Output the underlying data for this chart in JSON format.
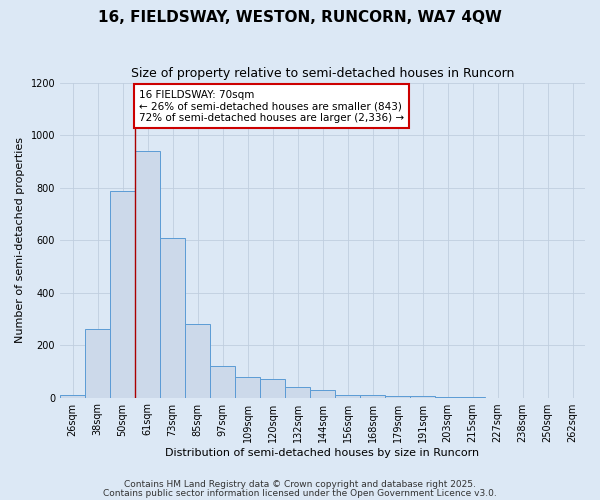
{
  "title1": "16, FIELDSWAY, WESTON, RUNCORN, WA7 4QW",
  "title2": "Size of property relative to semi-detached houses in Runcorn",
  "xlabel": "Distribution of semi-detached houses by size in Runcorn",
  "ylabel": "Number of semi-detached properties",
  "bin_labels": [
    "26sqm",
    "38sqm",
    "50sqm",
    "61sqm",
    "73sqm",
    "85sqm",
    "97sqm",
    "109sqm",
    "120sqm",
    "132sqm",
    "144sqm",
    "156sqm",
    "168sqm",
    "179sqm",
    "191sqm",
    "203sqm",
    "215sqm",
    "227sqm",
    "238sqm",
    "250sqm",
    "262sqm"
  ],
  "bar_heights": [
    10,
    260,
    790,
    940,
    610,
    280,
    120,
    80,
    70,
    40,
    30,
    10,
    8,
    5,
    5,
    2,
    1,
    0,
    0,
    0,
    0
  ],
  "bar_facecolor": "#ccd9ea",
  "bar_edgecolor": "#5b9bd5",
  "property_line_x": 3,
  "property_line_color": "#aa0000",
  "annotation_text": "16 FIELDSWAY: 70sqm\n← 26% of semi-detached houses are smaller (843)\n72% of semi-detached houses are larger (2,336) →",
  "annotation_box_edgecolor": "#cc0000",
  "annotation_box_facecolor": "#ffffff",
  "ylim": [
    0,
    1200
  ],
  "yticks": [
    0,
    200,
    400,
    600,
    800,
    1000,
    1200
  ],
  "background_color": "#dce8f5",
  "plot_background": "#dce8f5",
  "grid_color": "#c0cedf",
  "footer1": "Contains HM Land Registry data © Crown copyright and database right 2025.",
  "footer2": "Contains public sector information licensed under the Open Government Licence v3.0.",
  "title1_fontsize": 11,
  "title2_fontsize": 9,
  "xlabel_fontsize": 8,
  "ylabel_fontsize": 8,
  "tick_fontsize": 7,
  "annotation_fontsize": 7.5,
  "footer_fontsize": 6.5
}
